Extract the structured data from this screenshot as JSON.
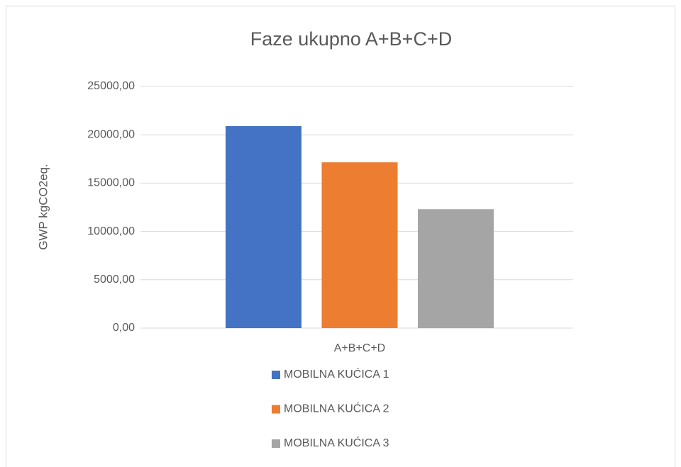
{
  "chart_data": {
    "type": "bar",
    "title": "Faze ukupno A+B+C+D",
    "y_label": "GWP kgCO2eq.",
    "categories": [
      "A+B+C+D"
    ],
    "series": [
      {
        "name": "MOBILNA KUĆICA 1",
        "color": "#4472c4",
        "values": [
          20900
        ]
      },
      {
        "name": "MOBILNA KUĆICA 2",
        "color": "#ed7d31",
        "values": [
          17150
        ]
      },
      {
        "name": "MOBILNA KUĆICA 3",
        "color": "#a5a5a5",
        "values": [
          12300
        ]
      }
    ],
    "ylim": [
      0,
      25000
    ],
    "yticks": [
      {
        "value": 0,
        "label": "0,00"
      },
      {
        "value": 5000,
        "label": "5000,00"
      },
      {
        "value": 10000,
        "label": "10000,00"
      },
      {
        "value": 15000,
        "label": "15000,00"
      },
      {
        "value": 20000,
        "label": "20000,00"
      },
      {
        "value": 25000,
        "label": "25000,00"
      }
    ],
    "grid": true,
    "legend": "bottom"
  }
}
